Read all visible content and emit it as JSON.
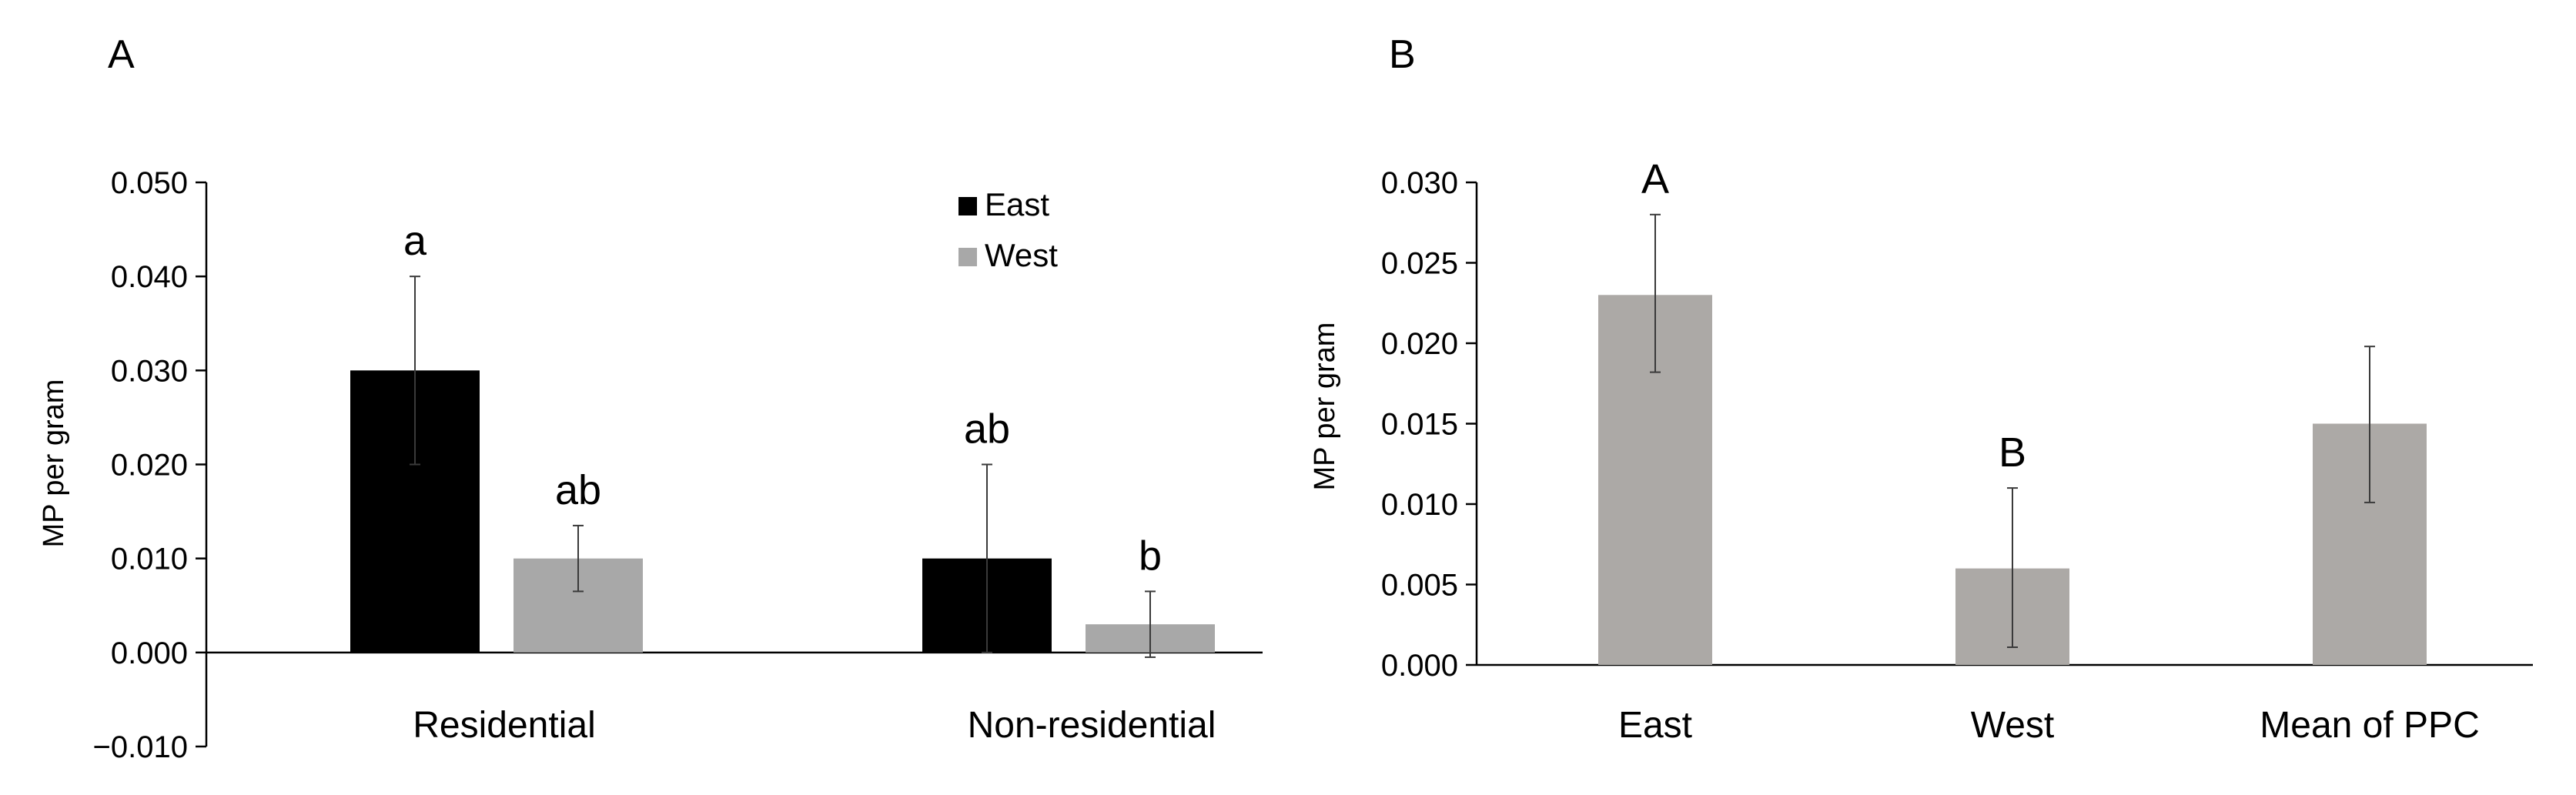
{
  "chart_data": [
    {
      "panel": "A",
      "type": "bar",
      "ylabel": "MP per gram",
      "ylim": [
        -0.01,
        0.05
      ],
      "yticks": [
        "−0.010",
        "0.000",
        "0.010",
        "0.020",
        "0.030",
        "0.040",
        "0.050"
      ],
      "ytick_values": [
        -0.01,
        0.0,
        0.01,
        0.02,
        0.03,
        0.04,
        0.05
      ],
      "categories": [
        "Residential",
        "Non-residential"
      ],
      "legend_position": "top-right",
      "series": [
        {
          "name": "East",
          "color": "#000000",
          "values": [
            0.03,
            0.01
          ],
          "err_upper": [
            0.04,
            0.02
          ],
          "err_lower": [
            0.02,
            0.0
          ],
          "labels": [
            "a",
            "ab"
          ]
        },
        {
          "name": "West",
          "color": "#a8a8a8",
          "values": [
            0.01,
            0.003
          ],
          "err_upper": [
            0.0135,
            0.0065
          ],
          "err_lower": [
            0.0065,
            -0.0005
          ],
          "labels": [
            "ab",
            "b"
          ]
        }
      ]
    },
    {
      "panel": "B",
      "type": "bar",
      "ylabel": "MP per gram",
      "ylim": [
        0.0,
        0.03
      ],
      "yticks": [
        "0.000",
        "0.005",
        "0.010",
        "0.015",
        "0.020",
        "0.025",
        "0.030"
      ],
      "ytick_values": [
        0.0,
        0.005,
        0.01,
        0.015,
        0.02,
        0.025,
        0.03
      ],
      "categories": [
        "East",
        "West",
        "Mean of PPC"
      ],
      "color": "#aca9a6",
      "values": [
        0.023,
        0.006,
        0.015
      ],
      "err_upper": [
        0.028,
        0.011,
        0.0198
      ],
      "err_lower": [
        0.0182,
        0.0011,
        0.0101
      ],
      "labels": [
        "A",
        "B",
        ""
      ]
    }
  ]
}
